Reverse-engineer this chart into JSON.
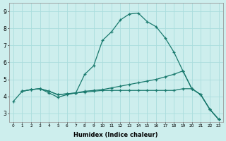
{
  "xlabel": "Humidex (Indice chaleur)",
  "bg_color": "#cdeeed",
  "grid_color": "#aadddd",
  "line_color": "#1a7a6e",
  "xlim": [
    -0.5,
    23.5
  ],
  "ylim": [
    2.5,
    9.5
  ],
  "xticks": [
    0,
    1,
    2,
    3,
    4,
    5,
    6,
    7,
    8,
    9,
    10,
    11,
    12,
    13,
    14,
    15,
    16,
    17,
    18,
    19,
    20,
    21,
    22,
    23
  ],
  "yticks": [
    3,
    4,
    5,
    6,
    7,
    8,
    9
  ],
  "line1_x": [
    0,
    1,
    2,
    3,
    4,
    5,
    6,
    7,
    8,
    9,
    10,
    11,
    12,
    13,
    14,
    15,
    16,
    17,
    18,
    19,
    20,
    21,
    22,
    23
  ],
  "line1_y": [
    3.7,
    4.3,
    4.4,
    4.45,
    4.2,
    3.95,
    4.1,
    4.2,
    5.3,
    5.8,
    7.3,
    7.8,
    8.5,
    8.85,
    8.9,
    8.4,
    8.1,
    7.45,
    6.6,
    5.5,
    4.45,
    4.1,
    3.25,
    2.65
  ],
  "line2_x": [
    1,
    2,
    3,
    4,
    5,
    6,
    7,
    8,
    9,
    10,
    11,
    12,
    13,
    14,
    15,
    16,
    17,
    18,
    19,
    20,
    21,
    22,
    23
  ],
  "line2_y": [
    4.3,
    4.4,
    4.45,
    4.3,
    4.1,
    4.15,
    4.2,
    4.3,
    4.35,
    4.4,
    4.5,
    4.6,
    4.7,
    4.8,
    4.9,
    5.0,
    5.15,
    5.3,
    5.5,
    4.45,
    4.1,
    3.25,
    2.65
  ],
  "line3_x": [
    1,
    2,
    3,
    4,
    5,
    6,
    7,
    8,
    9,
    10,
    11,
    12,
    13,
    14,
    15,
    16,
    17,
    18,
    19,
    20,
    21,
    22,
    23
  ],
  "line3_y": [
    4.3,
    4.4,
    4.45,
    4.3,
    4.1,
    4.15,
    4.2,
    4.25,
    4.3,
    4.35,
    4.35,
    4.35,
    4.35,
    4.35,
    4.35,
    4.35,
    4.35,
    4.35,
    4.45,
    4.45,
    4.1,
    3.25,
    2.65
  ]
}
